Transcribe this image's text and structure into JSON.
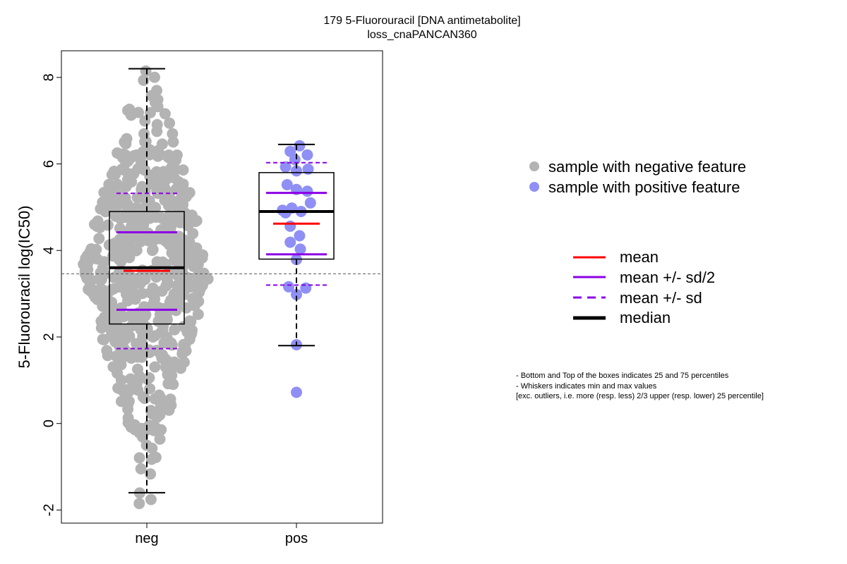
{
  "chart_data": {
    "type": "boxplot",
    "title": "179 5-Fluorouracil [DNA antimetabolite]",
    "subtitle": "loss_cnaPANCAN360",
    "ylabel": "5-Fluorouracil log(IC50)",
    "xlabel": "",
    "ylim": [
      -2.3,
      8.6
    ],
    "yticks": [
      -2,
      0,
      2,
      4,
      6,
      8
    ],
    "grid": false,
    "reference_line_y": 3.46,
    "categories": [
      "neg",
      "pos"
    ],
    "groups": [
      {
        "name": "neg",
        "legend_key": "negative",
        "color": "#b3b3b3",
        "q1": 2.3,
        "median": 3.6,
        "q3": 4.9,
        "whisker_low": -1.6,
        "whisker_high": 8.2,
        "mean": 3.53,
        "mean_minus_half_sd": 2.63,
        "mean_plus_half_sd": 4.42,
        "mean_minus_sd": 1.73,
        "mean_plus_sd": 5.32,
        "points_approx_count": 600,
        "points_range": [
          -1.9,
          8.2
        ]
      },
      {
        "name": "pos",
        "legend_key": "positive",
        "color": "#8f8ff5",
        "q1": 3.8,
        "median": 4.9,
        "q3": 5.8,
        "whisker_low": 1.8,
        "whisker_high": 6.45,
        "mean": 4.62,
        "mean_minus_half_sd": 3.91,
        "mean_plus_half_sd": 5.33,
        "mean_minus_sd": 3.2,
        "mean_plus_sd": 6.03,
        "points": [
          6.42,
          6.29,
          6.21,
          6.1,
          5.93,
          5.88,
          5.84,
          5.52,
          5.41,
          5.37,
          5.1,
          4.98,
          4.93,
          4.9,
          4.87,
          4.56,
          4.34,
          4.19,
          4.03,
          3.79,
          3.16,
          3.13,
          2.98,
          1.82,
          0.72
        ]
      }
    ],
    "legend": {
      "negative": "sample with negative feature",
      "positive": "sample with positive feature",
      "mean": "mean",
      "half_sd": "mean +/- sd/2",
      "sd": "mean +/- sd",
      "median": "median"
    },
    "colors": {
      "mean": "#ff0000",
      "sd": "#8b00e6",
      "median": "#000000",
      "ref_line": "#555555"
    },
    "notes": [
      "- Bottom and Top of the boxes indicates 25 and 75 percentiles",
      "- Whiskers indicates min and max values",
      "[exc. outliers, i.e. more (resp. less) 2/3 upper (resp. lower) 25 percentile]"
    ]
  }
}
